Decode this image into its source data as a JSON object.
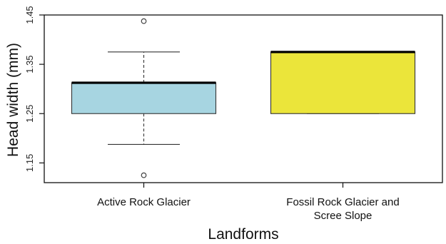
{
  "chart_data": {
    "type": "boxplot",
    "title": "",
    "xlabel": "Landforms",
    "ylabel": "Head width (mm)",
    "ylim": [
      1.11,
      1.45
    ],
    "yticks": [
      "1.15",
      "1.25",
      "1.35",
      "1.45"
    ],
    "grid": false,
    "categories": [
      [
        "Active Rock Glacier"
      ],
      [
        "Fossil Rock Glacier and",
        "Scree Slope"
      ]
    ],
    "boxes": [
      {
        "q1": 1.25,
        "median": 1.3125,
        "q3": 1.3125,
        "whisker_low": 1.1875,
        "whisker_high": 1.375,
        "outliers": [
          1.4375,
          1.125
        ],
        "color": "#a7d5e1"
      },
      {
        "q1": 1.25,
        "median": 1.375,
        "q3": 1.375,
        "whisker_low": 1.25,
        "whisker_high": 1.375,
        "outliers": [],
        "color": "#ebe53a"
      }
    ]
  }
}
